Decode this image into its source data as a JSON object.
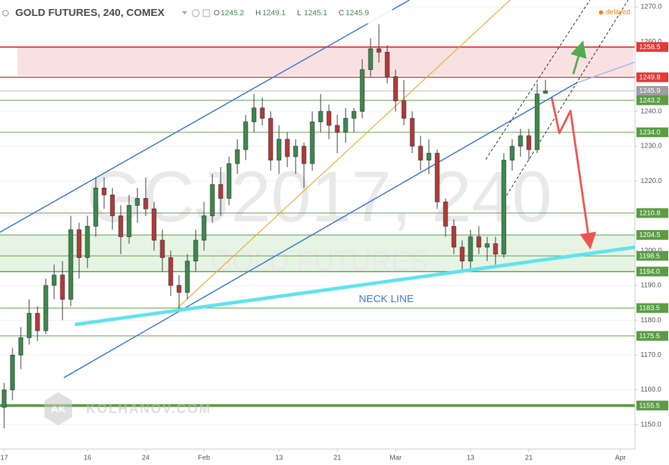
{
  "chart_data": {
    "type": "candlestick",
    "title": "GOLD FUTURES, 240, COMEX",
    "ohlc_header": [
      {
        "key": "O",
        "value": 1245.2
      },
      {
        "key": "H",
        "value": 1249.1
      },
      {
        "key": "L",
        "value": 1245.1
      },
      {
        "key": "C",
        "value": 1245.9
      }
    ],
    "status": "delayed",
    "watermark": "GCJ2017, 240",
    "watermark_subtitle": "GOLD FUTURES",
    "annotation": "NECK LINE",
    "logo_mark": "AK",
    "logo_text": "KOLHANOV.COM",
    "categories": [
      "17",
      null,
      null,
      null,
      null,
      null,
      null,
      null,
      null,
      null,
      "16",
      null,
      null,
      null,
      null,
      null,
      null,
      "24",
      null,
      null,
      null,
      null,
      null,
      null,
      "Feb",
      null,
      null,
      null,
      null,
      null,
      null,
      null,
      null,
      "13",
      null,
      null,
      null,
      null,
      null,
      null,
      "21",
      null,
      null,
      null,
      null,
      null,
      null,
      "Mar",
      null,
      null,
      null,
      null,
      null,
      null,
      null,
      null,
      "13",
      null,
      null,
      null,
      null,
      null,
      null,
      "21",
      null,
      null,
      null,
      null,
      null,
      null,
      null,
      null,
      null,
      null,
      "Apr",
      null
    ],
    "open": [
      1155,
      1160,
      1170,
      1175,
      1182,
      1177,
      1190,
      1193,
      1186,
      1206,
      1198,
      1207,
      1218,
      1216,
      1210,
      1204,
      1213,
      1215,
      1212,
      1203,
      1198,
      1190,
      1188,
      1197,
      1203,
      1210,
      1219,
      1215,
      1225,
      1229,
      1237,
      1241,
      1238,
      1226,
      1232,
      1227,
      1230,
      1225,
      1237,
      1240,
      1236,
      1234,
      1238,
      1240,
      1252,
      1258,
      1257,
      1250,
      1243,
      1238,
      1230,
      1226,
      1228,
      1214,
      1207,
      1201,
      1197,
      1204,
      1201,
      1202,
      1199,
      1226,
      1230,
      1233,
      1229,
      1245.2,
      null,
      null,
      null,
      null,
      null,
      null,
      null,
      null,
      null,
      null
    ],
    "high": [
      1162,
      1172,
      1178,
      1186,
      1184,
      1192,
      1196,
      1197,
      1210,
      1208,
      1210,
      1221,
      1221,
      1218,
      1213,
      1216,
      1218,
      1221,
      1214,
      1206,
      1200,
      1193,
      1199,
      1206,
      1214,
      1222,
      1224,
      1227,
      1232,
      1239,
      1245,
      1244,
      1240,
      1236,
      1234,
      1232,
      1231,
      1240,
      1245,
      1242,
      1239,
      1241,
      1241,
      1255,
      1261,
      1265,
      1259,
      1252,
      1249,
      1240,
      1233,
      1232,
      1229,
      1215,
      1209,
      1203,
      1206,
      1207,
      1204,
      1204,
      1228,
      1232,
      1235,
      1235,
      1248,
      1249.1,
      null,
      null,
      null,
      null,
      null,
      null,
      null,
      null,
      null,
      null
    ],
    "low": [
      1149,
      1157,
      1166,
      1173,
      1174,
      1176,
      1186,
      1180,
      1184,
      1192,
      1195,
      1204,
      1212,
      1206,
      1199,
      1202,
      1208,
      1210,
      1200,
      1194,
      1187,
      1183,
      1186,
      1194,
      1200,
      1208,
      1210,
      1213,
      1222,
      1226,
      1234,
      1236,
      1223,
      1222,
      1224,
      1222,
      1218,
      1223,
      1234,
      1232,
      1228,
      1231,
      1234,
      1238,
      1250,
      1254,
      1248,
      1240,
      1236,
      1228,
      1223,
      1222,
      1212,
      1204,
      1199,
      1194,
      1195,
      1199,
      1197,
      1196,
      1198,
      1223,
      1227,
      1226,
      1228,
      1245.1,
      null,
      null,
      null,
      null,
      null,
      null,
      null,
      null,
      null,
      null
    ],
    "close": [
      1160,
      1170,
      1175,
      1182,
      1177,
      1190,
      1193,
      1186,
      1206,
      1198,
      1207,
      1218,
      1216,
      1210,
      1204,
      1213,
      1215,
      1212,
      1203,
      1198,
      1190,
      1188,
      1197,
      1203,
      1210,
      1219,
      1215,
      1225,
      1229,
      1237,
      1241,
      1238,
      1226,
      1232,
      1227,
      1230,
      1225,
      1237,
      1240,
      1236,
      1234,
      1238,
      1240,
      1252,
      1258,
      1257,
      1250,
      1243,
      1238,
      1230,
      1226,
      1228,
      1214,
      1207,
      1201,
      1197,
      1204,
      1201,
      1202,
      1199,
      1226,
      1230,
      1233,
      1229,
      1245,
      1245.9,
      null,
      null,
      null,
      null,
      null,
      null,
      null,
      null,
      null,
      null
    ],
    "up_color": "#3d8a4c",
    "down_color": "#b33a3a",
    "ylim": [
      1143,
      1272
    ],
    "yticks": [
      {
        "value": 1150,
        "label": "1150.0"
      },
      {
        "value": 1160,
        "label": "1160.0"
      },
      {
        "value": 1170,
        "label": "1170.0"
      },
      {
        "value": 1180,
        "label": "1180.0"
      },
      {
        "value": 1190,
        "label": "1190.0"
      },
      {
        "value": 1200,
        "label": "1200.0"
      },
      {
        "value": 1210,
        "label": "1210.0"
      },
      {
        "value": 1220,
        "label": "1220.0"
      },
      {
        "value": 1230,
        "label": "1230.0"
      },
      {
        "value": 1240,
        "label": "1240.0"
      },
      {
        "value": 1250,
        "label": "1250.0"
      },
      {
        "value": 1260,
        "label": "1260.0"
      },
      {
        "value": 1270,
        "label": "1270.0"
      }
    ],
    "grid": true,
    "levels": [
      {
        "value": 1258.5,
        "color": "#e53935",
        "width": 2
      },
      {
        "value": 1249.8,
        "color": "#e53935",
        "width": 1.5
      },
      {
        "value": 1245.9,
        "color": "#9e9e9e",
        "width": 0.7
      },
      {
        "value": 1243.2,
        "color": "#5b9c44",
        "width": 1
      },
      {
        "value": 1234,
        "label": "1234.0",
        "color": "#5b9c44",
        "width": 1
      },
      {
        "value": 1210.8,
        "color": "#5b9c44",
        "width": 1
      },
      {
        "value": 1204.5,
        "color": "#5b9c44",
        "width": 1
      },
      {
        "value": 1198.5,
        "color": "#5b9c44",
        "width": 1
      },
      {
        "value": 1194,
        "label": "1194.0",
        "color": "#5b9c44",
        "width": 1.5
      },
      {
        "value": 1183.5,
        "color": "#5b9c44",
        "width": 1
      },
      {
        "value": 1175.5,
        "color": "#5b9c44",
        "width": 1
      },
      {
        "value": 1155.5,
        "color": "#5b9c44",
        "width": 4
      }
    ]
  }
}
